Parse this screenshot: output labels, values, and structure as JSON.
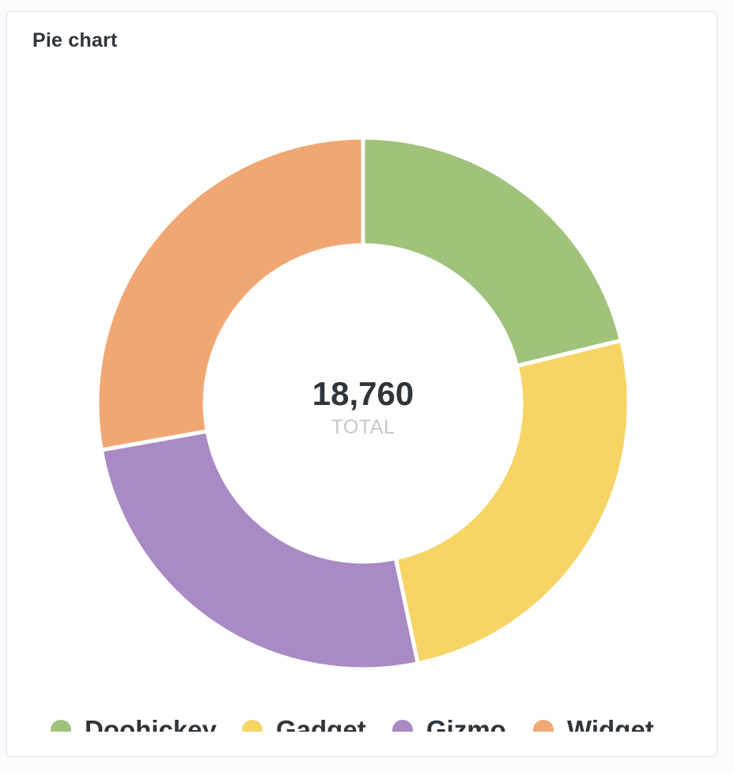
{
  "card": {
    "title": "Pie chart"
  },
  "chart_data": {
    "type": "pie",
    "variant": "donut",
    "total_value": "18,760",
    "total_label": "TOTAL",
    "categories": [
      "Doohickey",
      "Gadget",
      "Gizmo",
      "Widget"
    ],
    "values": [
      3976,
      4784,
      4784,
      5216
    ],
    "colors": [
      "#a0c27b",
      "#f7d466",
      "#a88ac4",
      "#f0a773"
    ],
    "legend_position": "bottom"
  }
}
